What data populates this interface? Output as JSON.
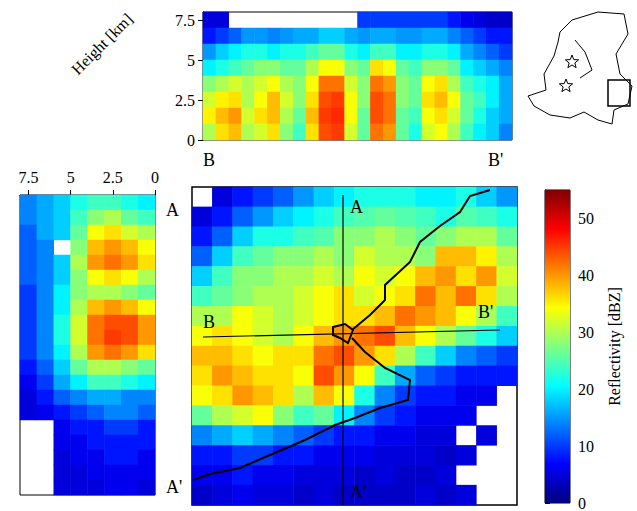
{
  "chart_data": [
    {
      "type": "heatmap",
      "color": "jet",
      "tick_labels": false,
      "annotations": [
        "A",
        "A'",
        "B",
        "B'"
      ],
      "colorbar": {
        "label": "Reflectivity [dBZ]",
        "range": [
          0,
          55
        ],
        "ticks": [
          0,
          10,
          20,
          30,
          40,
          50
        ]
      },
      "cells": [
        [
          null,
          5,
          8,
          10,
          12,
          15,
          18,
          20,
          22,
          22,
          22,
          20,
          20,
          22,
          18,
          15
        ],
        [
          5,
          8,
          12,
          15,
          18,
          20,
          22,
          24,
          25,
          26,
          25,
          24,
          22,
          25,
          24,
          22
        ],
        [
          8,
          12,
          18,
          22,
          22,
          24,
          25,
          28,
          28,
          30,
          28,
          26,
          28,
          30,
          30,
          26
        ],
        [
          12,
          18,
          24,
          26,
          28,
          28,
          30,
          28,
          32,
          30,
          30,
          28,
          38,
          38,
          35,
          30
        ],
        [
          18,
          24,
          28,
          28,
          30,
          30,
          32,
          30,
          34,
          32,
          34,
          38,
          40,
          36,
          40,
          32
        ],
        [
          24,
          26,
          28,
          30,
          30,
          32,
          34,
          36,
          32,
          34,
          36,
          42,
          38,
          42,
          36,
          30
        ],
        [
          30,
          30,
          34,
          32,
          30,
          32,
          34,
          36,
          36,
          38,
          42,
          40,
          38,
          34,
          30,
          24
        ],
        [
          34,
          36,
          34,
          32,
          30,
          34,
          38,
          40,
          42,
          44,
          38,
          34,
          30,
          26,
          22,
          18
        ],
        [
          38,
          38,
          36,
          34,
          36,
          36,
          42,
          44,
          40,
          36,
          30,
          24,
          18,
          14,
          12,
          10
        ],
        [
          36,
          40,
          38,
          36,
          36,
          34,
          44,
          40,
          34,
          24,
          16,
          12,
          10,
          8,
          8,
          8
        ],
        [
          34,
          36,
          40,
          38,
          36,
          30,
          38,
          34,
          22,
          14,
          10,
          8,
          8,
          6,
          6,
          null
        ],
        [
          26,
          30,
          32,
          34,
          28,
          24,
          26,
          20,
          14,
          10,
          8,
          6,
          6,
          6,
          null,
          null
        ],
        [
          14,
          16,
          18,
          16,
          14,
          12,
          10,
          8,
          8,
          6,
          6,
          5,
          5,
          null,
          5,
          null
        ],
        [
          8,
          8,
          10,
          10,
          8,
          8,
          6,
          6,
          6,
          5,
          5,
          5,
          4,
          5,
          null,
          null
        ],
        [
          6,
          6,
          8,
          6,
          6,
          5,
          5,
          5,
          4,
          5,
          4,
          4,
          5,
          null,
          null,
          null
        ],
        [
          4,
          5,
          6,
          5,
          5,
          4,
          5,
          4,
          4,
          4,
          4,
          5,
          4,
          5,
          null,
          null
        ]
      ]
    },
    {
      "type": "heatmap",
      "annotations": [
        "B",
        "B'"
      ],
      "tick_labels": "y",
      "ylim": [
        0,
        8
      ],
      "yticks": [
        0,
        2.5,
        5,
        7.5
      ],
      "cells": [
        [
          5,
          5,
          null,
          null,
          null,
          null,
          null,
          null,
          null,
          null,
          null,
          null,
          10,
          10,
          10,
          10,
          10,
          10,
          10,
          8,
          6,
          5,
          4,
          4
        ],
        [
          8,
          10,
          12,
          15,
          15,
          14,
          15,
          16,
          16,
          18,
          18,
          16,
          15,
          16,
          16,
          15,
          15,
          16,
          16,
          14,
          12,
          10,
          8,
          8
        ],
        [
          15,
          18,
          20,
          22,
          22,
          20,
          22,
          22,
          24,
          26,
          26,
          22,
          20,
          24,
          24,
          20,
          20,
          22,
          22,
          20,
          16,
          14,
          12,
          10
        ],
        [
          20,
          22,
          24,
          26,
          28,
          28,
          26,
          26,
          30,
          34,
          34,
          28,
          26,
          36,
          34,
          26,
          24,
          28,
          28,
          26,
          20,
          18,
          16,
          14
        ],
        [
          28,
          30,
          32,
          30,
          32,
          34,
          30,
          28,
          34,
          42,
          42,
          32,
          28,
          42,
          40,
          28,
          26,
          34,
          36,
          30,
          24,
          22,
          20,
          16
        ],
        [
          32,
          35,
          36,
          30,
          34,
          38,
          32,
          28,
          36,
          44,
          45,
          34,
          28,
          44,
          42,
          28,
          26,
          36,
          38,
          34,
          26,
          24,
          20,
          16
        ],
        [
          35,
          38,
          40,
          32,
          36,
          38,
          30,
          26,
          38,
          45,
          46,
          34,
          26,
          44,
          42,
          26,
          24,
          34,
          36,
          32,
          26,
          22,
          18,
          16
        ],
        [
          30,
          36,
          38,
          30,
          32,
          36,
          28,
          24,
          36,
          44,
          45,
          32,
          26,
          42,
          40,
          26,
          22,
          32,
          34,
          30,
          24,
          20,
          18,
          14
        ]
      ]
    },
    {
      "type": "heatmap",
      "annotations": [
        "A",
        "A'"
      ],
      "tick_labels": "x",
      "xlabel": "Height [km]",
      "xlim": [
        8,
        0
      ],
      "xticks": [
        7.5,
        5,
        2.5,
        0
      ],
      "cells": [
        [
          14,
          16,
          18,
          22,
          24,
          24,
          22,
          20
        ],
        [
          14,
          16,
          18,
          24,
          28,
          30,
          26,
          24
        ],
        [
          12,
          16,
          18,
          26,
          34,
          36,
          32,
          30
        ],
        [
          12,
          14,
          null,
          28,
          38,
          40,
          38,
          34
        ],
        [
          12,
          14,
          18,
          30,
          40,
          42,
          40,
          36
        ],
        [
          12,
          14,
          18,
          28,
          34,
          36,
          34,
          30
        ],
        [
          10,
          14,
          20,
          28,
          30,
          30,
          28,
          26
        ],
        [
          10,
          14,
          20,
          30,
          38,
          40,
          38,
          34
        ],
        [
          10,
          14,
          22,
          32,
          42,
          44,
          44,
          40
        ],
        [
          10,
          14,
          22,
          32,
          42,
          45,
          44,
          40
        ],
        [
          10,
          14,
          20,
          30,
          40,
          42,
          40,
          36
        ],
        [
          8,
          12,
          18,
          26,
          30,
          30,
          28,
          26
        ],
        [
          6,
          10,
          16,
          20,
          24,
          24,
          22,
          20
        ],
        [
          5,
          8,
          12,
          14,
          16,
          16,
          14,
          14
        ],
        [
          5,
          6,
          8,
          10,
          12,
          14,
          14,
          12
        ],
        [
          null,
          null,
          6,
          8,
          8,
          10,
          10,
          8
        ],
        [
          null,
          null,
          6,
          6,
          8,
          8,
          8,
          8
        ],
        [
          null,
          null,
          5,
          6,
          6,
          8,
          8,
          6
        ],
        [
          null,
          null,
          5,
          5,
          6,
          6,
          6,
          6
        ],
        [
          null,
          null,
          5,
          5,
          5,
          6,
          6,
          5
        ]
      ]
    }
  ]
}
